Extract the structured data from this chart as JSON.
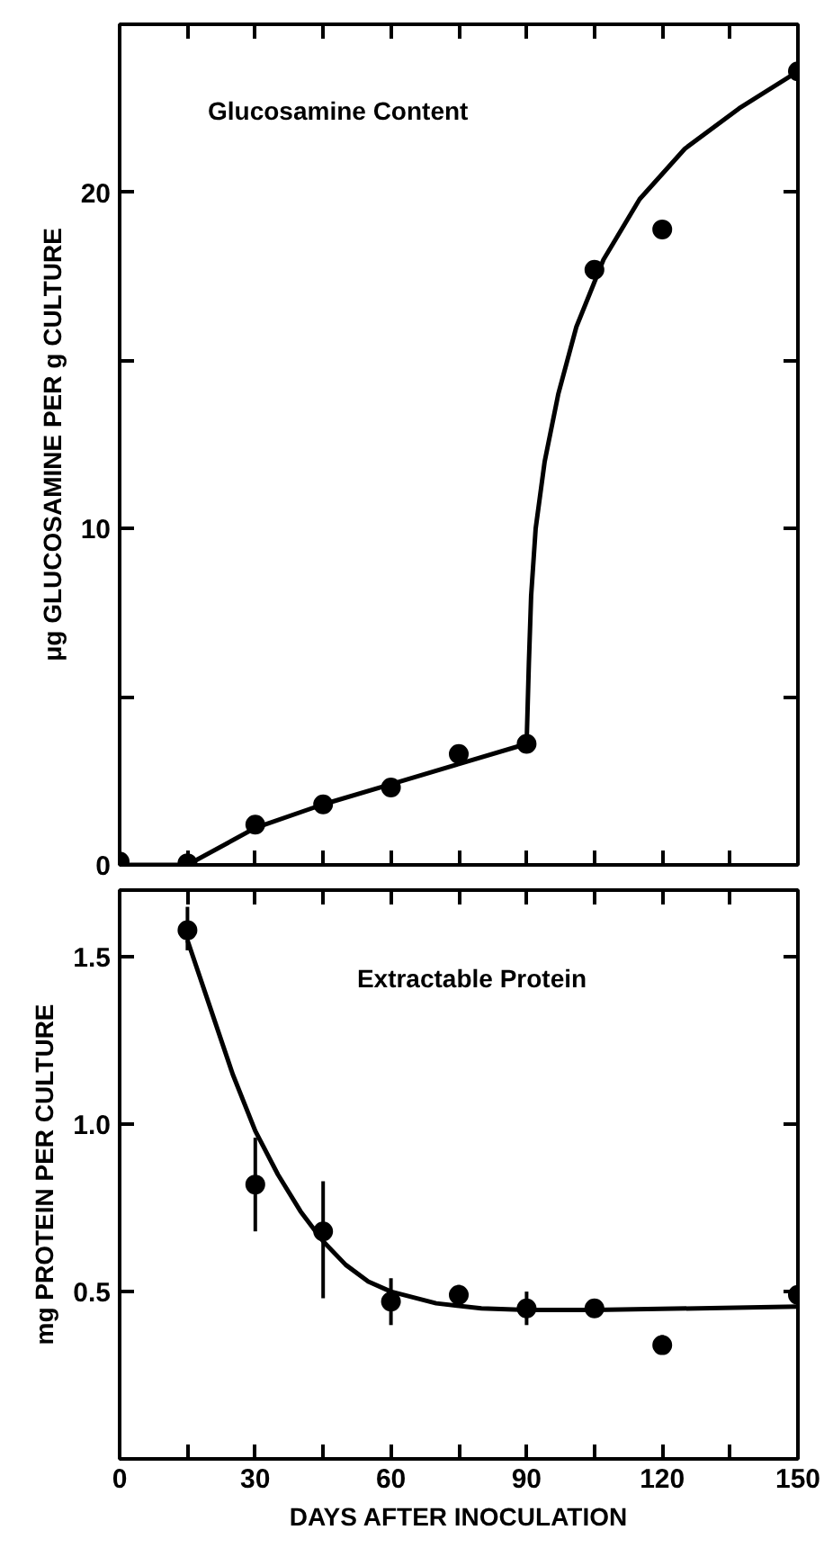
{
  "chart_data": [
    {
      "type": "scatter",
      "ylabel": "μg GLUCOSAMINE PER g CULTURE",
      "annotations": [
        "Glucosamine Content"
      ],
      "xlim": [
        0,
        150
      ],
      "ylim": [
        0,
        25
      ],
      "xticks": [
        {
          "value": 0,
          "label": null
        },
        {
          "value": 15,
          "label": null
        },
        {
          "value": 30,
          "label": null
        },
        {
          "value": 45,
          "label": null
        },
        {
          "value": 60,
          "label": null
        },
        {
          "value": 75,
          "label": null
        },
        {
          "value": 90,
          "label": null
        },
        {
          "value": 105,
          "label": null
        },
        {
          "value": 120,
          "label": null
        },
        {
          "value": 135,
          "label": null
        },
        {
          "value": 150,
          "label": null
        }
      ],
      "yticks": [
        0,
        {
          "value": 5,
          "label": null
        },
        10,
        {
          "value": 15,
          "label": null
        },
        20
      ],
      "tick_labels": "y",
      "grid": false,
      "series": [
        {
          "marker": "circle",
          "color": "#000000",
          "x": [
            0,
            15,
            30,
            45,
            60,
            75,
            90,
            105,
            120,
            150
          ],
          "values": [
            0.1,
            0.05,
            1.2,
            1.8,
            2.3,
            3.3,
            3.6,
            17.7,
            18.9,
            23.6
          ]
        },
        {
          "type": "line",
          "marker": "none",
          "color": "#000000",
          "line_style": "solid",
          "x": [
            0,
            15,
            30,
            45,
            60,
            75,
            90,
            90.5,
            91,
            92,
            94,
            97,
            101,
            107,
            115,
            125,
            137,
            150
          ],
          "values": [
            0,
            0,
            1.1,
            1.8,
            2.4,
            3.0,
            3.6,
            6,
            8,
            10,
            12,
            14,
            16,
            18,
            19.8,
            21.3,
            22.5,
            23.6
          ]
        }
      ]
    },
    {
      "type": "scatter",
      "xlabel": "DAYS AFTER INOCULATION",
      "ylabel": "mg PROTEIN PER CULTURE",
      "annotations": [
        "Extractable Protein"
      ],
      "xlim": [
        0,
        150
      ],
      "ylim": [
        0,
        1.7
      ],
      "xticks": [
        0,
        {
          "value": 15,
          "label": null
        },
        30,
        {
          "value": 45,
          "label": null
        },
        60,
        {
          "value": 75,
          "label": null
        },
        90,
        {
          "value": 105,
          "label": null
        },
        120,
        {
          "value": 135,
          "label": null
        },
        150
      ],
      "yticks": [
        0.5,
        {
          "value": 1.0,
          "label": "1.0"
        },
        1.5
      ],
      "grid": false,
      "series": [
        {
          "marker": "circle",
          "color": "#000000",
          "x": [
            15,
            30,
            45,
            60,
            75,
            90,
            105,
            120,
            150
          ],
          "values": [
            1.58,
            0.82,
            0.68,
            0.47,
            0.49,
            0.45,
            0.45,
            0.34,
            0.49
          ],
          "errors": [
            [
              1.52,
              1.65
            ],
            [
              0.68,
              0.96
            ],
            [
              0.48,
              0.83
            ],
            [
              0.4,
              0.54
            ],
            [
              0.47,
              0.52
            ],
            [
              0.4,
              0.5
            ],
            [
              0.43,
              0.47
            ],
            [
              0.32,
              0.37
            ],
            [
              0.45,
              0.53
            ]
          ]
        },
        {
          "type": "line",
          "marker": "none",
          "color": "#000000",
          "line_style": "solid",
          "x": [
            15,
            20,
            25,
            30,
            35,
            40,
            45,
            50,
            55,
            60,
            70,
            80,
            90,
            105,
            150
          ],
          "values": [
            1.55,
            1.35,
            1.15,
            0.98,
            0.85,
            0.74,
            0.65,
            0.58,
            0.53,
            0.5,
            0.465,
            0.45,
            0.445,
            0.445,
            0.455
          ]
        }
      ]
    }
  ]
}
